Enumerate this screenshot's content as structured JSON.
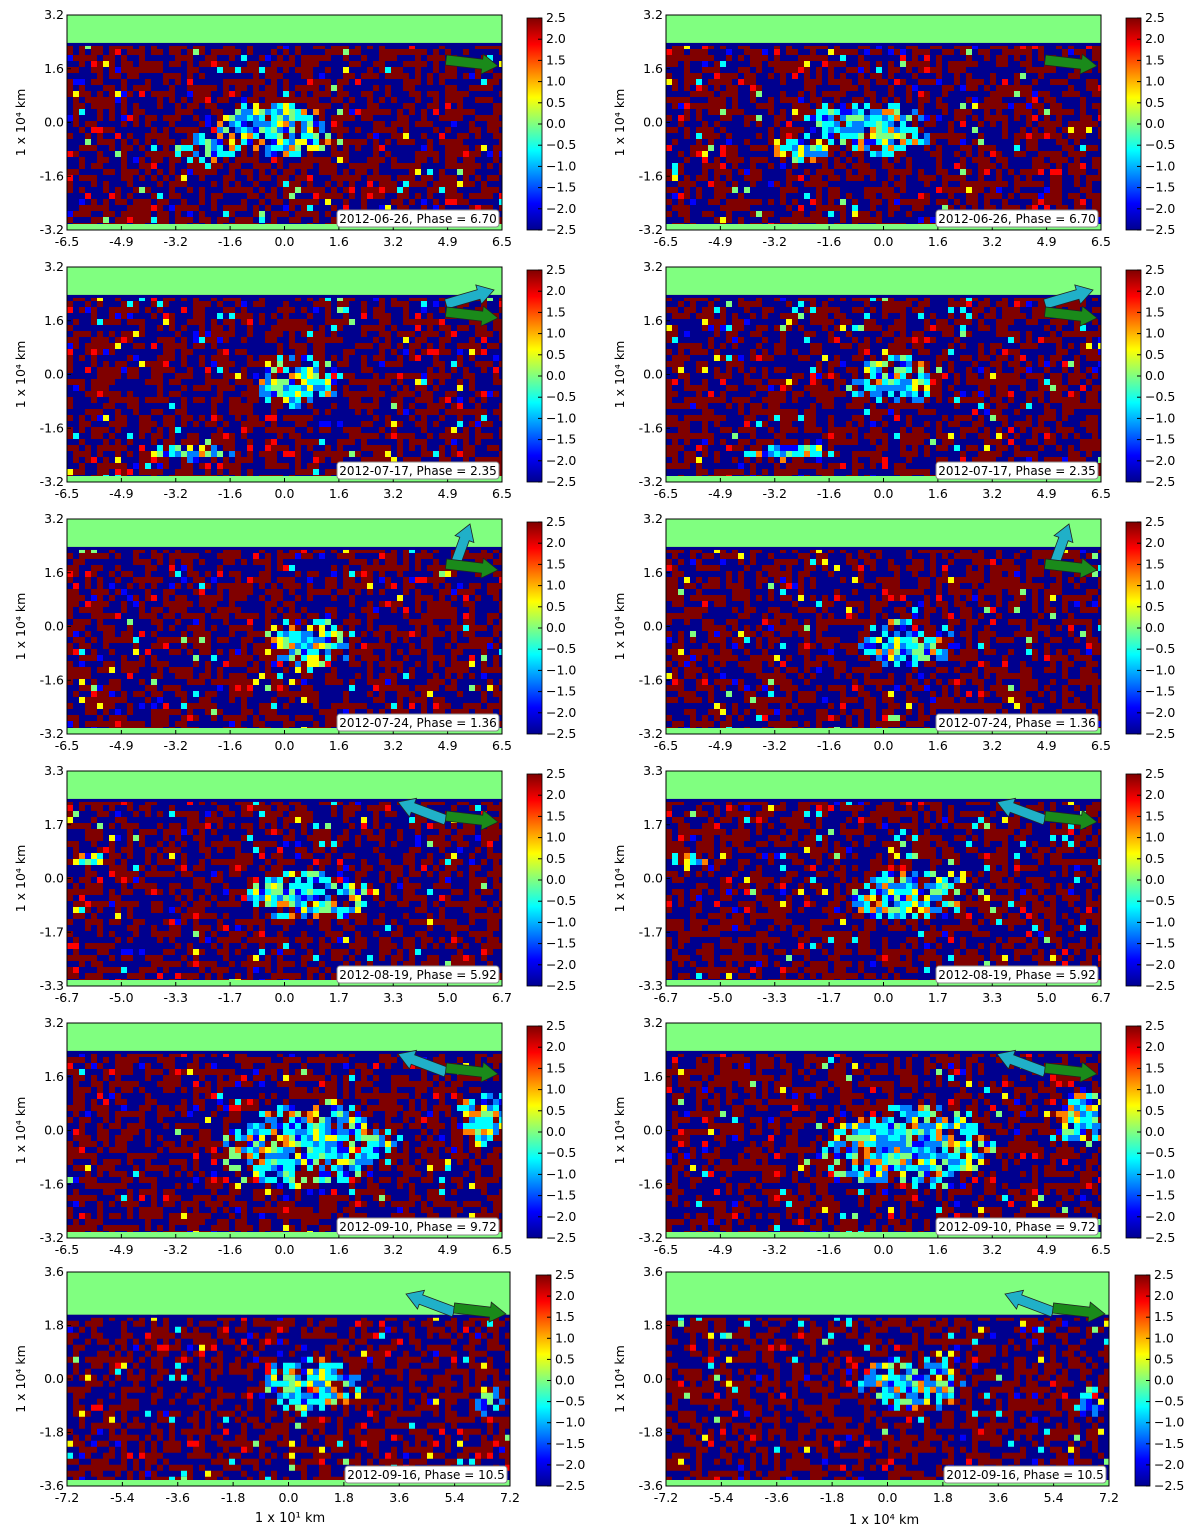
{
  "chart_data": {
    "type": "heatmap",
    "description_units": "map of normalized values, color scale -2.5 to 2.5",
    "colorbar": {
      "range": [
        -2.5,
        2.5
      ],
      "ticks": [
        "2.5",
        "2.0",
        "1.5",
        "1.0",
        "0.5",
        "0.0",
        "−0.5",
        "−1.0",
        "−1.5",
        "−2.0",
        "−2.5"
      ],
      "colors": [
        "#00008f",
        "#0000ff",
        "#0080ff",
        "#00ffff",
        "#80ff80",
        "#ffff00",
        "#ff8000",
        "#ff0000",
        "#800000"
      ]
    },
    "ylabel": "1 x 10⁴  km",
    "xlabels": [
      "1 x 10¹  km",
      "1 x 10⁴  km"
    ],
    "panels": [
      {
        "row": 0,
        "col": 0,
        "label": "2012-06-26, Phase = 6.70",
        "xticks": [
          "-6.5",
          "-4.9",
          "-3.2",
          "-1.6",
          "0.0",
          "1.6",
          "3.2",
          "4.9",
          "6.5"
        ],
        "yticks": [
          "3.2",
          "1.6",
          "0.0",
          "-1.6",
          "-3.2"
        ],
        "xlim": [
          -6.5,
          6.5
        ],
        "ylim": [
          -3.2,
          3.2
        ],
        "arrows": [
          "green"
        ]
      },
      {
        "row": 0,
        "col": 1,
        "label": "2012-06-26, Phase = 6.70",
        "xticks": [
          "-6.5",
          "-4.9",
          "-3.2",
          "-1.6",
          "0.0",
          "1.6",
          "3.2",
          "4.9",
          "6.5"
        ],
        "yticks": [
          "3.2",
          "1.6",
          "0.0",
          "-1.6",
          "-3.2"
        ],
        "xlim": [
          -6.5,
          6.5
        ],
        "ylim": [
          -3.2,
          3.2
        ],
        "arrows": [
          "green"
        ]
      },
      {
        "row": 1,
        "col": 0,
        "label": "2012-07-17, Phase = 2.35",
        "xticks": [
          "-6.5",
          "-4.9",
          "-3.2",
          "-1.6",
          "0.0",
          "1.6",
          "3.2",
          "4.9",
          "6.5"
        ],
        "yticks": [
          "3.2",
          "1.6",
          "0.0",
          "-1.6",
          "-3.2"
        ],
        "xlim": [
          -6.5,
          6.5
        ],
        "ylim": [
          -3.2,
          3.2
        ],
        "arrows": [
          "cyan-up-right",
          "green"
        ]
      },
      {
        "row": 1,
        "col": 1,
        "label": "2012-07-17, Phase = 2.35",
        "xticks": [
          "-6.5",
          "-4.9",
          "-3.2",
          "-1.6",
          "0.0",
          "1.6",
          "3.2",
          "4.9",
          "6.5"
        ],
        "yticks": [
          "3.2",
          "1.6",
          "0.0",
          "-1.6",
          "-3.2"
        ],
        "xlim": [
          -6.5,
          6.5
        ],
        "ylim": [
          -3.2,
          3.2
        ],
        "arrows": [
          "cyan-up-right",
          "green"
        ]
      },
      {
        "row": 2,
        "col": 0,
        "label": "2012-07-24, Phase = 1.36",
        "xticks": [
          "-6.5",
          "-4.9",
          "-3.2",
          "-1.6",
          "0.0",
          "1.6",
          "3.2",
          "4.9",
          "6.5"
        ],
        "yticks": [
          "3.2",
          "1.6",
          "0.0",
          "-1.6",
          "-3.2"
        ],
        "xlim": [
          -6.5,
          6.5
        ],
        "ylim": [
          -3.2,
          3.2
        ],
        "arrows": [
          "cyan-up",
          "green"
        ]
      },
      {
        "row": 2,
        "col": 1,
        "label": "2012-07-24, Phase = 1.36",
        "xticks": [
          "-6.5",
          "-4.9",
          "-3.2",
          "-1.6",
          "0.0",
          "1.6",
          "3.2",
          "4.9",
          "6.5"
        ],
        "yticks": [
          "3.2",
          "1.6",
          "0.0",
          "-1.6",
          "-3.2"
        ],
        "xlim": [
          -6.5,
          6.5
        ],
        "ylim": [
          -3.2,
          3.2
        ],
        "arrows": [
          "cyan-up",
          "green"
        ]
      },
      {
        "row": 3,
        "col": 0,
        "label": "2012-08-19, Phase = 5.92",
        "xticks": [
          "-6.7",
          "-5.0",
          "-3.3",
          "-1.7",
          "0.0",
          "1.7",
          "3.3",
          "5.0",
          "6.7"
        ],
        "yticks": [
          "3.3",
          "1.7",
          "0.0",
          "-1.7",
          "-3.3"
        ],
        "xlim": [
          -6.7,
          6.7
        ],
        "ylim": [
          -3.3,
          3.3
        ],
        "arrows": [
          "cyan-up-left",
          "green"
        ]
      },
      {
        "row": 3,
        "col": 1,
        "label": "2012-08-19, Phase = 5.92",
        "xticks": [
          "-6.7",
          "-5.0",
          "-3.3",
          "-1.7",
          "0.0",
          "1.7",
          "3.3",
          "5.0",
          "6.7"
        ],
        "yticks": [
          "3.3",
          "1.7",
          "0.0",
          "-1.7",
          "-3.3"
        ],
        "xlim": [
          -6.7,
          6.7
        ],
        "ylim": [
          -3.3,
          3.3
        ],
        "arrows": [
          "cyan-up-left",
          "green"
        ]
      },
      {
        "row": 4,
        "col": 0,
        "label": "2012-09-10, Phase = 9.72",
        "xticks": [
          "-6.5",
          "-4.9",
          "-3.2",
          "-1.6",
          "0.0",
          "1.6",
          "3.2",
          "4.9",
          "6.5"
        ],
        "yticks": [
          "3.2",
          "1.6",
          "0.0",
          "-1.6",
          "-3.2"
        ],
        "xlim": [
          -6.5,
          6.5
        ],
        "ylim": [
          -3.2,
          3.2
        ],
        "arrows": [
          "cyan-up-left",
          "green"
        ]
      },
      {
        "row": 4,
        "col": 1,
        "label": "2012-09-10, Phase = 9.72",
        "xticks": [
          "-6.5",
          "-4.9",
          "-3.2",
          "-1.6",
          "0.0",
          "1.6",
          "3.2",
          "4.9",
          "6.5"
        ],
        "yticks": [
          "3.2",
          "1.6",
          "0.0",
          "-1.6",
          "-3.2"
        ],
        "xlim": [
          -6.5,
          6.5
        ],
        "ylim": [
          -3.2,
          3.2
        ],
        "arrows": [
          "cyan-up-left",
          "green"
        ]
      },
      {
        "row": 5,
        "col": 0,
        "label": "2012-09-16, Phase = 10.5",
        "xticks": [
          "-7.2",
          "-5.4",
          "-3.6",
          "-1.8",
          "0.0",
          "1.8",
          "3.6",
          "5.4",
          "7.2"
        ],
        "yticks": [
          "3.6",
          "1.8",
          "0.0",
          "-1.8",
          "-3.6"
        ],
        "xlim": [
          -7.2,
          7.2
        ],
        "ylim": [
          -3.6,
          3.6
        ],
        "arrows": [
          "cyan-up-left",
          "green"
        ]
      },
      {
        "row": 5,
        "col": 1,
        "label": "2012-09-16, Phase = 10.5",
        "xticks": [
          "-7.2",
          "-5.4",
          "-3.6",
          "-1.8",
          "0.0",
          "1.8",
          "3.6",
          "5.4",
          "7.2"
        ],
        "yticks": [
          "3.6",
          "1.8",
          "0.0",
          "-1.8",
          "-3.6"
        ],
        "xlim": [
          -7.2,
          7.2
        ],
        "ylim": [
          -3.6,
          3.6
        ],
        "arrows": [
          "cyan-up-left",
          "green"
        ]
      }
    ]
  }
}
